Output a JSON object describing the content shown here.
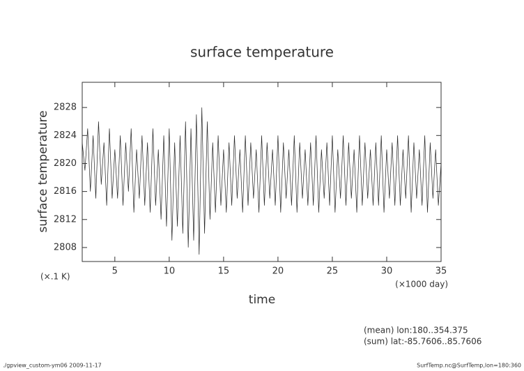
{
  "chart_data": {
    "type": "line",
    "title": "surface temperature",
    "y_label": "surface temperature",
    "x_label": "time",
    "y_unit_label": "(×.1 K)",
    "x_unit_label": "(×1000 day)",
    "annotations": [
      "(mean) lon:180..354.375",
      "(sum) lat:-85.7606..85.7606"
    ],
    "footer_left": "./gpview_custom-ym06  2009-11-17",
    "footer_right": "SurfTemp.nc@SurfTemp,lon=180:360",
    "xlim": [
      2,
      35
    ],
    "ylim": [
      2806,
      2831.6
    ],
    "xticks": [
      5,
      10,
      15,
      20,
      25,
      30,
      35
    ],
    "yticks": [
      2808,
      2812,
      2816,
      2820,
      2824,
      2828
    ],
    "series": [
      {
        "color": "#222222",
        "x": [
          2,
          2.25,
          2.5,
          2.75,
          3,
          3.25,
          3.5,
          3.75,
          4,
          4.25,
          4.5,
          4.75,
          5,
          5.25,
          5.5,
          5.75,
          6,
          6.25,
          6.5,
          6.75,
          7,
          7.25,
          7.5,
          7.75,
          8,
          8.25,
          8.5,
          8.75,
          9,
          9.25,
          9.5,
          9.75,
          10,
          10.25,
          10.5,
          10.75,
          11,
          11.25,
          11.5,
          11.75,
          12,
          12.25,
          12.5,
          12.75,
          13,
          13.25,
          13.5,
          13.75,
          14,
          14.25,
          14.5,
          14.75,
          15,
          15.25,
          15.5,
          15.75,
          16,
          16.25,
          16.5,
          16.75,
          17,
          17.25,
          17.5,
          17.75,
          18,
          18.25,
          18.5,
          18.75,
          19,
          19.25,
          19.5,
          19.75,
          20,
          20.25,
          20.5,
          20.75,
          21,
          21.25,
          21.5,
          21.75,
          22,
          22.25,
          22.5,
          22.75,
          23,
          23.25,
          23.5,
          23.75,
          24,
          24.25,
          24.5,
          24.75,
          25,
          25.25,
          25.5,
          25.75,
          26,
          26.25,
          26.5,
          26.75,
          27,
          27.25,
          27.5,
          27.75,
          28,
          28.25,
          28.5,
          28.75,
          29,
          29.25,
          29.5,
          29.75,
          30,
          30.25,
          30.5,
          30.75,
          31,
          31.25,
          31.5,
          31.75,
          32,
          32.25,
          32.5,
          32.75,
          33,
          33.25,
          33.5,
          33.75,
          34,
          34.25,
          34.5,
          34.75,
          35
        ],
        "values": [
          2823,
          2819,
          2825,
          2816,
          2824,
          2815,
          2826,
          2817,
          2823,
          2814,
          2825,
          2815,
          2822,
          2815,
          2824,
          2814,
          2823,
          2816,
          2825,
          2813,
          2822,
          2815,
          2824,
          2814,
          2823,
          2813,
          2825,
          2814,
          2822,
          2812,
          2824,
          2811,
          2825,
          2809,
          2823,
          2811,
          2824,
          2810,
          2826,
          2808,
          2825,
          2809,
          2827,
          2807,
          2828,
          2810,
          2826,
          2812,
          2823,
          2813,
          2824,
          2814,
          2822,
          2813,
          2823,
          2814,
          2824,
          2815,
          2822,
          2813,
          2824,
          2814,
          2823,
          2815,
          2822,
          2813,
          2824,
          2814,
          2823,
          2815,
          2822,
          2814,
          2824,
          2813,
          2823,
          2815,
          2822,
          2814,
          2824,
          2813,
          2823,
          2815,
          2822,
          2814,
          2823,
          2814,
          2824,
          2813,
          2822,
          2815,
          2823,
          2814,
          2824,
          2813,
          2822,
          2815,
          2824,
          2814,
          2823,
          2815,
          2822,
          2813,
          2824,
          2814,
          2823,
          2815,
          2822,
          2814,
          2823,
          2814,
          2824,
          2813,
          2822,
          2815,
          2823,
          2814,
          2824,
          2814,
          2822,
          2815,
          2824,
          2813,
          2823,
          2815,
          2822,
          2814,
          2824,
          2813,
          2823,
          2815,
          2822,
          2814,
          2820
        ]
      }
    ]
  }
}
